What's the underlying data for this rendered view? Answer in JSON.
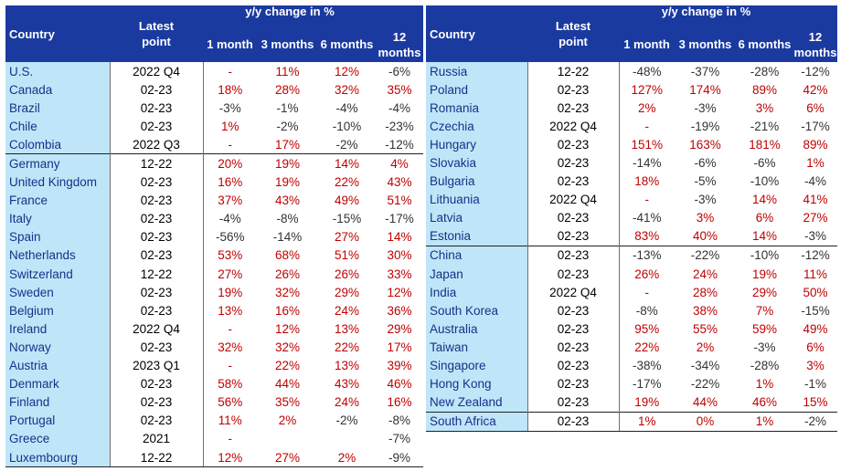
{
  "header": {
    "country": "Country",
    "latest_line1": "Latest",
    "latest_line2": "point",
    "yy": "y/y change in %",
    "m1": "1 month",
    "m3": "3 months",
    "m6": "6 months",
    "m12_line1": "12",
    "m12_line2": "months"
  },
  "left_rows": [
    {
      "country": "U.S.",
      "point": "2022 Q4",
      "m1": "-",
      "m3": "11%",
      "m6": "12%",
      "m12": "-6%"
    },
    {
      "country": "Canada",
      "point": "02-23",
      "m1": "18%",
      "m3": "28%",
      "m6": "32%",
      "m12": "35%"
    },
    {
      "country": "Brazil",
      "point": "02-23",
      "m1": "-3%",
      "m3": "-1%",
      "m6": "-4%",
      "m12": "-4%"
    },
    {
      "country": "Chile",
      "point": "02-23",
      "m1": "1%",
      "m3": "-2%",
      "m6": "-10%",
      "m12": "-23%"
    },
    {
      "country": "Colombia",
      "point": "2022 Q3",
      "m1": "-",
      "m3": "17%",
      "m6": "-2%",
      "m12": "-12%"
    },
    {
      "country": "Germany",
      "point": "12-22",
      "m1": "20%",
      "m3": "19%",
      "m6": "14%",
      "m12": "4%",
      "group_start": true
    },
    {
      "country": "United Kingdom",
      "point": "02-23",
      "m1": "16%",
      "m3": "19%",
      "m6": "22%",
      "m12": "43%"
    },
    {
      "country": "France",
      "point": "02-23",
      "m1": "37%",
      "m3": "43%",
      "m6": "49%",
      "m12": "51%"
    },
    {
      "country": "Italy",
      "point": "02-23",
      "m1": "-4%",
      "m3": "-8%",
      "m6": "-15%",
      "m12": "-17%"
    },
    {
      "country": "Spain",
      "point": "02-23",
      "m1": "-56%",
      "m3": "-14%",
      "m6": "27%",
      "m12": "14%"
    },
    {
      "country": "Netherlands",
      "point": "02-23",
      "m1": "53%",
      "m3": "68%",
      "m6": "51%",
      "m12": "30%"
    },
    {
      "country": "Switzerland",
      "point": "12-22",
      "m1": "27%",
      "m3": "26%",
      "m6": "26%",
      "m12": "33%"
    },
    {
      "country": "Sweden",
      "point": "02-23",
      "m1": "19%",
      "m3": "32%",
      "m6": "29%",
      "m12": "12%"
    },
    {
      "country": "Belgium",
      "point": "02-23",
      "m1": "13%",
      "m3": "16%",
      "m6": "24%",
      "m12": "36%"
    },
    {
      "country": "Ireland",
      "point": "2022 Q4",
      "m1": "-",
      "m3": "12%",
      "m6": "13%",
      "m12": "29%"
    },
    {
      "country": "Norway",
      "point": "02-23",
      "m1": "32%",
      "m3": "32%",
      "m6": "22%",
      "m12": "17%"
    },
    {
      "country": "Austria",
      "point": "2023 Q1",
      "m1": "-",
      "m3": "22%",
      "m6": "13%",
      "m12": "39%"
    },
    {
      "country": "Denmark",
      "point": "02-23",
      "m1": "58%",
      "m3": "44%",
      "m6": "43%",
      "m12": "46%"
    },
    {
      "country": "Finland",
      "point": "02-23",
      "m1": "56%",
      "m3": "35%",
      "m6": "24%",
      "m12": "16%"
    },
    {
      "country": "Portugal",
      "point": "02-23",
      "m1": "11%",
      "m3": "2%",
      "m6": "-2%",
      "m12": "-8%"
    },
    {
      "country": "Greece",
      "point": "2021",
      "m1": "-",
      "m3": "",
      "m6": "",
      "m12": "-7%"
    },
    {
      "country": "Luxembourg",
      "point": "12-22",
      "m1": "12%",
      "m3": "27%",
      "m6": "2%",
      "m12": "-9%",
      "last": true
    }
  ],
  "right_rows": [
    {
      "country": "Russia",
      "point": "12-22",
      "m1": "-48%",
      "m3": "-37%",
      "m6": "-28%",
      "m12": "-12%"
    },
    {
      "country": "Poland",
      "point": "02-23",
      "m1": "127%",
      "m3": "174%",
      "m6": "89%",
      "m12": "42%"
    },
    {
      "country": "Romania",
      "point": "02-23",
      "m1": "2%",
      "m3": "-3%",
      "m6": "3%",
      "m12": "6%"
    },
    {
      "country": "Czechia",
      "point": "2022 Q4",
      "m1": "-",
      "m3": "-19%",
      "m6": "-21%",
      "m12": "-17%"
    },
    {
      "country": "Hungary",
      "point": "02-23",
      "m1": "151%",
      "m3": "163%",
      "m6": "181%",
      "m12": "89%"
    },
    {
      "country": "Slovakia",
      "point": "02-23",
      "m1": "-14%",
      "m3": "-6%",
      "m6": "-6%",
      "m12": "1%"
    },
    {
      "country": "Bulgaria",
      "point": "02-23",
      "m1": "18%",
      "m3": "-5%",
      "m6": "-10%",
      "m12": "-4%"
    },
    {
      "country": "Lithuania",
      "point": "2022 Q4",
      "m1": "-",
      "m3": "-3%",
      "m6": "14%",
      "m12": "41%"
    },
    {
      "country": "Latvia",
      "point": "02-23",
      "m1": "-41%",
      "m3": "3%",
      "m6": "6%",
      "m12": "27%"
    },
    {
      "country": "Estonia",
      "point": "02-23",
      "m1": "83%",
      "m3": "40%",
      "m6": "14%",
      "m12": "-3%"
    },
    {
      "country": "China",
      "point": "02-23",
      "m1": "-13%",
      "m3": "-22%",
      "m6": "-10%",
      "m12": "-12%",
      "group_start": true
    },
    {
      "country": "Japan",
      "point": "02-23",
      "m1": "26%",
      "m3": "24%",
      "m6": "19%",
      "m12": "11%"
    },
    {
      "country": "India",
      "point": "2022 Q4",
      "m1": "-",
      "m3": "28%",
      "m6": "29%",
      "m12": "50%"
    },
    {
      "country": "South Korea",
      "point": "02-23",
      "m1": "-8%",
      "m3": "38%",
      "m6": "7%",
      "m12": "-15%"
    },
    {
      "country": "Australia",
      "point": "02-23",
      "m1": "95%",
      "m3": "55%",
      "m6": "59%",
      "m12": "49%"
    },
    {
      "country": "Taiwan",
      "point": "02-23",
      "m1": "22%",
      "m3": "2%",
      "m6": "-3%",
      "m12": "6%"
    },
    {
      "country": "Singapore",
      "point": "02-23",
      "m1": "-38%",
      "m3": "-34%",
      "m6": "-28%",
      "m12": "3%"
    },
    {
      "country": "Hong Kong",
      "point": "02-23",
      "m1": "-17%",
      "m3": "-22%",
      "m6": "1%",
      "m12": "-1%"
    },
    {
      "country": "New Zealand",
      "point": "02-23",
      "m1": "19%",
      "m3": "44%",
      "m6": "46%",
      "m12": "15%"
    },
    {
      "country": "South Africa",
      "point": "02-23",
      "m1": "1%",
      "m3": "0%",
      "m6": "1%",
      "m12": "-2%",
      "group_start": true,
      "last": true
    }
  ],
  "colors": {
    "header_bg": "#1b3aa0",
    "country_bg": "#bfe6f8",
    "country_text": "#1a2f8a",
    "positive": "#c00000",
    "negative": "#333333"
  }
}
